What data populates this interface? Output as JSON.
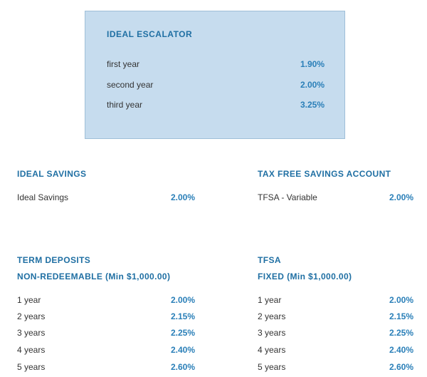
{
  "escalator": {
    "title": "IDEAL ESCALATOR",
    "rows": [
      {
        "label": "first year",
        "value": "1.90%"
      },
      {
        "label": "second year",
        "value": "2.00%"
      },
      {
        "label": "third year",
        "value": "3.25%"
      }
    ]
  },
  "savings": {
    "title": "IDEAL SAVINGS",
    "rows": [
      {
        "label": "Ideal Savings",
        "value": "2.00%"
      }
    ]
  },
  "tfsa_savings": {
    "title": "TAX FREE SAVINGS ACCOUNT",
    "rows": [
      {
        "label": "TFSA - Variable",
        "value": "2.00%"
      }
    ]
  },
  "term_deposits": {
    "title": "TERM DEPOSITS",
    "subtitle": "NON-REDEEMABLE (Min $1,000.00)",
    "rows": [
      {
        "label": "1 year",
        "value": "2.00%"
      },
      {
        "label": "2 years",
        "value": "2.15%"
      },
      {
        "label": "3 years",
        "value": "2.25%"
      },
      {
        "label": "4 years",
        "value": "2.40%"
      },
      {
        "label": "5 years",
        "value": "2.60%"
      }
    ]
  },
  "tfsa_fixed": {
    "title": "TFSA",
    "subtitle": "FIXED (Min $1,000.00)",
    "rows": [
      {
        "label": "1 year",
        "value": "2.00%"
      },
      {
        "label": "2 years",
        "value": "2.15%"
      },
      {
        "label": "3 years",
        "value": "2.25%"
      },
      {
        "label": "4 years",
        "value": "2.40%"
      },
      {
        "label": "5 years",
        "value": "2.60%"
      }
    ]
  },
  "colors": {
    "heading": "#1f6fa3",
    "value": "#2a7fb8",
    "box_background": "#c6dcee"
  }
}
